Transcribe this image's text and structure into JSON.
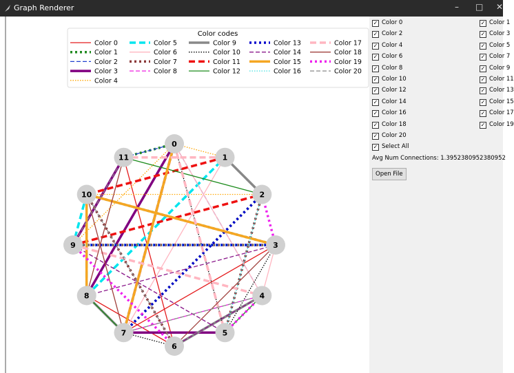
{
  "window": {
    "title": "Graph Renderer"
  },
  "legend": {
    "title": "Color codes",
    "items": [
      {
        "label": "Color 0",
        "color": "#e41a1c",
        "style": "solid",
        "thick": false
      },
      {
        "label": "Color 1",
        "color": "#228b22",
        "style": "dotted",
        "thick": true
      },
      {
        "label": "Color 2",
        "color": "#1f3fcf",
        "style": "dashed",
        "thick": false
      },
      {
        "label": "Color 3",
        "color": "#800080",
        "style": "solid",
        "thick": true
      },
      {
        "label": "Color 4",
        "color": "#ffa500",
        "style": "dotted",
        "thick": false
      },
      {
        "label": "Color 5",
        "color": "#00e5ee",
        "style": "dashed",
        "thick": true
      },
      {
        "label": "Color 6",
        "color": "#ffb6c1",
        "style": "solid",
        "thick": false
      },
      {
        "label": "Color 7",
        "color": "#8b3a3a",
        "style": "dotted",
        "thick": true
      },
      {
        "label": "Color 8",
        "color": "#ee1de0",
        "style": "dashed",
        "thick": false
      },
      {
        "label": "Color 9",
        "color": "#888888",
        "style": "solid",
        "thick": true
      },
      {
        "label": "Color 10",
        "color": "#000000",
        "style": "dotted",
        "thick": false
      },
      {
        "label": "Color 11",
        "color": "#ee1111",
        "style": "dashed",
        "thick": true
      },
      {
        "label": "Color 12",
        "color": "#1a8a1a",
        "style": "solid",
        "thick": false
      },
      {
        "label": "Color 13",
        "color": "#0000cc",
        "style": "dotted",
        "thick": true
      },
      {
        "label": "Color 14",
        "color": "#8b1a8b",
        "style": "dashed",
        "thick": false
      },
      {
        "label": "Color 15",
        "color": "#f5a623",
        "style": "solid",
        "thick": true
      },
      {
        "label": "Color 16",
        "color": "#40e0e0",
        "style": "dotted",
        "thick": false
      },
      {
        "label": "Color 17",
        "color": "#ffb6c1",
        "style": "dashed",
        "thick": true
      },
      {
        "label": "Color 18",
        "color": "#a0403c",
        "style": "solid",
        "thick": false
      },
      {
        "label": "Color 19",
        "color": "#ee22ee",
        "style": "dotted",
        "thick": true
      },
      {
        "label": "Color 20",
        "color": "#888888",
        "style": "dashed",
        "thick": false
      }
    ]
  },
  "nodes": [
    "0",
    "1",
    "2",
    "3",
    "4",
    "5",
    "6",
    "7",
    "8",
    "9",
    "10",
    "11"
  ],
  "checkboxes": [
    "Color 0",
    "Color 1",
    "Color 2",
    "Color 3",
    "Color 4",
    "Color 5",
    "Color 6",
    "Color 7",
    "Color 8",
    "Color 9",
    "Color 10",
    "Color 11",
    "Color 12",
    "Color 13",
    "Color 14",
    "Color 15",
    "Color 16",
    "Color 17",
    "Color 18",
    "Color 19",
    "Color 20"
  ],
  "select_all": "Select All",
  "avg_connections": "Avg Num Connections: 1.3952380952380952",
  "button": "Open File"
}
